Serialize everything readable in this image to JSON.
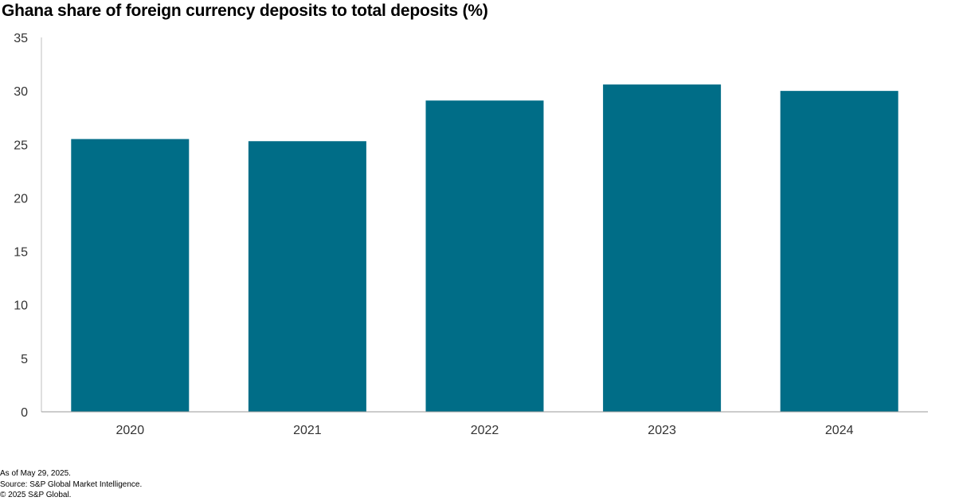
{
  "chart_data": {
    "type": "bar",
    "title": "Ghana share of foreign currency deposits to total deposits (%)",
    "xlabel": "",
    "ylabel": "",
    "categories": [
      "2020",
      "2021",
      "2022",
      "2023",
      "2024"
    ],
    "values": [
      25.5,
      25.3,
      29.1,
      30.6,
      30.0
    ],
    "ylim": [
      0,
      35
    ],
    "yticks": [
      "0",
      "5",
      "10",
      "15",
      "20",
      "25",
      "30",
      "35"
    ],
    "grid": false,
    "legend": "none",
    "bar_color": "#006d87"
  },
  "footer": {
    "as_of": "As of May 29, 2025.",
    "source": "Source: S&P Global Market Intelligence.",
    "copyright": "© 2025 S&P Global."
  }
}
